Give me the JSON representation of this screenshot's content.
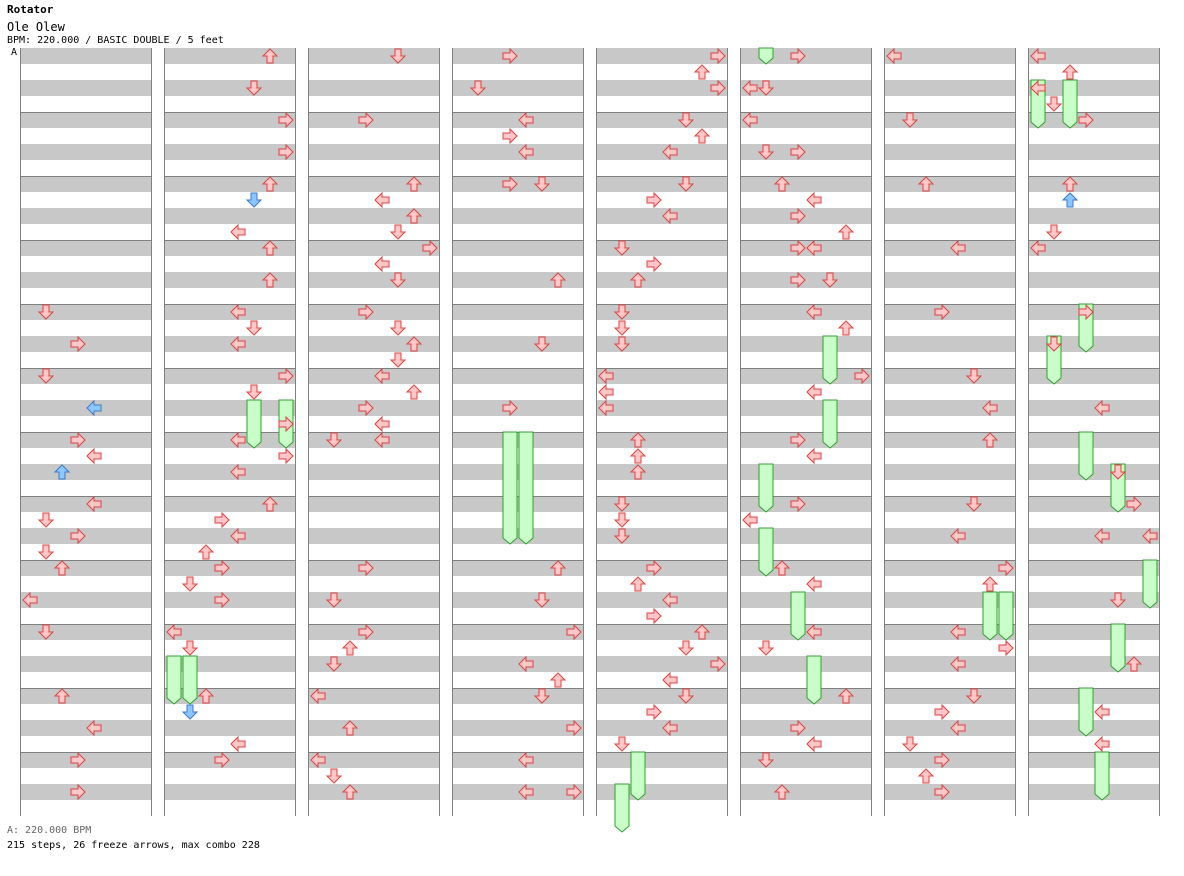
{
  "song": {
    "title": "Rotator",
    "artist": "Ole Olew",
    "chart_info": "BPM: 220.000 / BASIC DOUBLE / 5 feet",
    "bpm_marker": "A",
    "bpm_legend": "A: 220.000 BPM",
    "stats": "215 steps, 26 freeze arrows, max combo 228"
  },
  "colors": {
    "note_fill": "#ffc8c8",
    "note_stroke": "#e04040",
    "blue_fill": "#8cc8ff",
    "blue_stroke": "#3c78c8",
    "freeze_fill": "#c8ffc8",
    "freeze_stroke": "#30a030"
  },
  "chart_data": {
    "type": "table",
    "lanes_per_column": 8,
    "rows_per_column": 48,
    "columns": [
      {
        "notes": [
          [
            16,
            1,
            "down"
          ],
          [
            18,
            3,
            "right"
          ],
          [
            20,
            1,
            "down"
          ],
          [
            22,
            4,
            "left",
            "blue"
          ],
          [
            24,
            3,
            "right"
          ],
          [
            25,
            4,
            "left"
          ],
          [
            26,
            2,
            "up",
            "blue"
          ],
          [
            28,
            4,
            "left"
          ],
          [
            29,
            1,
            "down"
          ],
          [
            30,
            3,
            "right"
          ],
          [
            31,
            1,
            "down"
          ],
          [
            32,
            2,
            "up"
          ],
          [
            34,
            0,
            "left"
          ],
          [
            36,
            1,
            "down"
          ],
          [
            40,
            2,
            "up"
          ],
          [
            42,
            4,
            "left"
          ],
          [
            44,
            3,
            "right"
          ],
          [
            46,
            3,
            "right"
          ]
        ],
        "holds": []
      },
      {
        "notes": [
          [
            0,
            6,
            "up"
          ],
          [
            2,
            5,
            "down"
          ],
          [
            4,
            7,
            "right"
          ],
          [
            6,
            7,
            "right"
          ],
          [
            8,
            6,
            "up"
          ],
          [
            9,
            5,
            "down",
            "blue"
          ],
          [
            11,
            4,
            "left"
          ],
          [
            12,
            6,
            "up"
          ],
          [
            14,
            6,
            "up"
          ],
          [
            16,
            4,
            "left"
          ],
          [
            17,
            5,
            "down"
          ],
          [
            18,
            4,
            "left"
          ],
          [
            20,
            7,
            "right"
          ],
          [
            21,
            5,
            "down"
          ],
          [
            23,
            7,
            "right"
          ],
          [
            24,
            4,
            "left"
          ],
          [
            25,
            7,
            "right"
          ],
          [
            26,
            4,
            "left"
          ],
          [
            28,
            6,
            "up"
          ],
          [
            29,
            3,
            "right"
          ],
          [
            30,
            4,
            "left"
          ],
          [
            31,
            2,
            "up"
          ],
          [
            32,
            3,
            "right"
          ],
          [
            33,
            1,
            "down"
          ],
          [
            34,
            3,
            "right"
          ],
          [
            36,
            0,
            "left"
          ],
          [
            37,
            1,
            "down"
          ],
          [
            40,
            2,
            "up"
          ],
          [
            41,
            1,
            "down",
            "blue"
          ],
          [
            43,
            4,
            "left"
          ],
          [
            44,
            3,
            "right"
          ]
        ],
        "holds": [
          [
            22,
            24.5,
            5
          ],
          [
            22,
            24.5,
            7
          ],
          [
            38,
            40.5,
            0
          ],
          [
            38,
            40.5,
            1
          ]
        ]
      },
      {
        "notes": [
          [
            0,
            5,
            "down"
          ],
          [
            4,
            3,
            "right"
          ],
          [
            8,
            6,
            "up"
          ],
          [
            9,
            4,
            "left"
          ],
          [
            10,
            6,
            "up"
          ],
          [
            11,
            5,
            "down"
          ],
          [
            12,
            7,
            "right"
          ],
          [
            13,
            4,
            "left"
          ],
          [
            14,
            5,
            "down"
          ],
          [
            16,
            3,
            "right"
          ],
          [
            17,
            5,
            "down"
          ],
          [
            18,
            6,
            "up"
          ],
          [
            19,
            5,
            "down"
          ],
          [
            20,
            4,
            "left"
          ],
          [
            21,
            6,
            "up"
          ],
          [
            22,
            3,
            "right"
          ],
          [
            23,
            4,
            "left"
          ],
          [
            24,
            1,
            "down"
          ],
          [
            24,
            4,
            "left"
          ],
          [
            32,
            3,
            "right"
          ],
          [
            34,
            1,
            "down"
          ],
          [
            36,
            3,
            "right"
          ],
          [
            37,
            2,
            "up"
          ],
          [
            38,
            1,
            "down"
          ],
          [
            40,
            0,
            "left"
          ],
          [
            42,
            2,
            "up"
          ],
          [
            44,
            0,
            "left"
          ],
          [
            45,
            1,
            "down"
          ],
          [
            46,
            2,
            "up"
          ]
        ],
        "holds": []
      },
      {
        "notes": [
          [
            0,
            3,
            "right"
          ],
          [
            2,
            1,
            "down"
          ],
          [
            4,
            4,
            "left"
          ],
          [
            5,
            3,
            "right"
          ],
          [
            6,
            4,
            "left"
          ],
          [
            8,
            3,
            "right"
          ],
          [
            8,
            5,
            "down"
          ],
          [
            14,
            6,
            "up"
          ],
          [
            18,
            5,
            "down"
          ],
          [
            22,
            3,
            "right"
          ],
          [
            32,
            6,
            "up"
          ],
          [
            34,
            5,
            "down"
          ],
          [
            36,
            7,
            "right"
          ],
          [
            38,
            4,
            "left"
          ],
          [
            39,
            6,
            "up"
          ],
          [
            40,
            5,
            "down"
          ],
          [
            42,
            7,
            "right"
          ],
          [
            44,
            4,
            "left"
          ],
          [
            46,
            4,
            "left"
          ],
          [
            46,
            7,
            "right"
          ]
        ],
        "holds": [
          [
            24,
            30.5,
            3
          ],
          [
            24,
            30.5,
            4
          ]
        ]
      },
      {
        "notes": [
          [
            0,
            7,
            "right"
          ],
          [
            1,
            6,
            "up"
          ],
          [
            2,
            7,
            "right"
          ],
          [
            4,
            5,
            "down"
          ],
          [
            5,
            6,
            "up"
          ],
          [
            6,
            4,
            "left"
          ],
          [
            8,
            5,
            "down"
          ],
          [
            9,
            3,
            "right"
          ],
          [
            10,
            4,
            "left"
          ],
          [
            12,
            1,
            "down"
          ],
          [
            13,
            3,
            "right"
          ],
          [
            14,
            2,
            "up"
          ],
          [
            16,
            1,
            "down"
          ],
          [
            17,
            1,
            "down"
          ],
          [
            18,
            1,
            "down"
          ],
          [
            20,
            0,
            "left"
          ],
          [
            21,
            0,
            "left"
          ],
          [
            22,
            0,
            "left"
          ],
          [
            24,
            2,
            "up"
          ],
          [
            25,
            2,
            "up"
          ],
          [
            26,
            2,
            "up"
          ],
          [
            28,
            1,
            "down"
          ],
          [
            29,
            1,
            "down"
          ],
          [
            30,
            1,
            "down"
          ],
          [
            32,
            3,
            "right"
          ],
          [
            33,
            2,
            "up"
          ],
          [
            34,
            4,
            "left"
          ],
          [
            35,
            3,
            "right"
          ],
          [
            36,
            6,
            "up"
          ],
          [
            37,
            5,
            "down"
          ],
          [
            38,
            7,
            "right"
          ],
          [
            39,
            4,
            "left"
          ],
          [
            40,
            5,
            "down"
          ],
          [
            41,
            3,
            "right"
          ],
          [
            42,
            4,
            "left"
          ],
          [
            43,
            1,
            "down"
          ]
        ],
        "holds": [
          [
            44,
            46.5,
            2
          ],
          [
            46,
            48.5,
            1
          ]
        ]
      },
      {
        "notes": [
          [
            0,
            3,
            "right"
          ],
          [
            2,
            0,
            "left"
          ],
          [
            2,
            1,
            "down"
          ],
          [
            4,
            0,
            "left"
          ],
          [
            6,
            1,
            "down"
          ],
          [
            6,
            3,
            "right"
          ],
          [
            8,
            2,
            "up"
          ],
          [
            9,
            4,
            "left"
          ],
          [
            10,
            3,
            "right"
          ],
          [
            11,
            6,
            "up"
          ],
          [
            12,
            3,
            "right"
          ],
          [
            12,
            4,
            "left"
          ],
          [
            14,
            3,
            "right"
          ],
          [
            14,
            5,
            "down"
          ],
          [
            16,
            4,
            "left"
          ],
          [
            17,
            6,
            "up"
          ],
          [
            20,
            7,
            "right"
          ],
          [
            21,
            4,
            "left"
          ],
          [
            24,
            3,
            "right"
          ],
          [
            25,
            4,
            "left"
          ],
          [
            28,
            3,
            "right"
          ],
          [
            29,
            0,
            "left"
          ],
          [
            32,
            2,
            "up"
          ],
          [
            33,
            4,
            "left"
          ],
          [
            36,
            4,
            "left"
          ],
          [
            37,
            1,
            "down"
          ],
          [
            40,
            6,
            "up"
          ],
          [
            42,
            3,
            "right"
          ],
          [
            43,
            4,
            "left"
          ],
          [
            44,
            1,
            "down"
          ],
          [
            46,
            2,
            "up"
          ]
        ],
        "holds": [
          [
            0,
            0.5,
            1
          ],
          [
            18,
            20.5,
            5
          ],
          [
            22,
            24.5,
            5
          ],
          [
            26,
            28.5,
            1
          ],
          [
            30,
            32.5,
            1
          ],
          [
            34,
            36.5,
            3
          ],
          [
            38,
            40.5,
            4
          ]
        ]
      },
      {
        "notes": [
          [
            0,
            0,
            "left"
          ],
          [
            4,
            1,
            "down"
          ],
          [
            8,
            2,
            "up"
          ],
          [
            12,
            4,
            "left"
          ],
          [
            16,
            3,
            "right"
          ],
          [
            20,
            5,
            "down"
          ],
          [
            22,
            6,
            "left"
          ],
          [
            24,
            6,
            "up"
          ],
          [
            28,
            5,
            "down"
          ],
          [
            30,
            4,
            "left"
          ],
          [
            32,
            7,
            "right"
          ],
          [
            33,
            6,
            "up"
          ],
          [
            36,
            4,
            "left"
          ],
          [
            37,
            7,
            "right"
          ],
          [
            38,
            4,
            "left"
          ],
          [
            40,
            5,
            "down"
          ],
          [
            41,
            3,
            "right"
          ],
          [
            42,
            4,
            "left"
          ],
          [
            43,
            1,
            "down"
          ],
          [
            44,
            3,
            "right"
          ],
          [
            45,
            2,
            "up"
          ],
          [
            46,
            3,
            "right"
          ]
        ],
        "holds": [
          [
            34,
            36.5,
            6
          ],
          [
            34,
            36.5,
            7
          ]
        ]
      },
      {
        "notes": [
          [
            0,
            0,
            "left"
          ],
          [
            1,
            2,
            "up"
          ],
          [
            2,
            0,
            "left"
          ],
          [
            3,
            1,
            "down"
          ],
          [
            4,
            3,
            "right"
          ],
          [
            8,
            2,
            "up"
          ],
          [
            9,
            2,
            "up",
            "blue"
          ],
          [
            11,
            1,
            "down"
          ],
          [
            12,
            0,
            "left"
          ],
          [
            16,
            3,
            "right"
          ],
          [
            18,
            1,
            "down"
          ],
          [
            22,
            4,
            "left"
          ],
          [
            26,
            5,
            "down"
          ],
          [
            28,
            6,
            "right"
          ],
          [
            30,
            4,
            "left"
          ],
          [
            30,
            7,
            "left"
          ],
          [
            34,
            5,
            "down"
          ],
          [
            38,
            6,
            "up"
          ],
          [
            41,
            4,
            "left"
          ],
          [
            43,
            4,
            "left"
          ]
        ],
        "holds": [
          [
            2,
            4.5,
            0
          ],
          [
            2,
            4.5,
            2
          ],
          [
            16,
            18.5,
            3
          ],
          [
            18,
            20.5,
            1
          ],
          [
            24,
            26.5,
            3
          ],
          [
            26,
            28.5,
            5
          ],
          [
            32,
            34.5,
            7
          ],
          [
            36,
            38.5,
            5
          ],
          [
            40,
            42.5,
            3
          ],
          [
            44,
            46.5,
            4
          ]
        ]
      }
    ]
  }
}
